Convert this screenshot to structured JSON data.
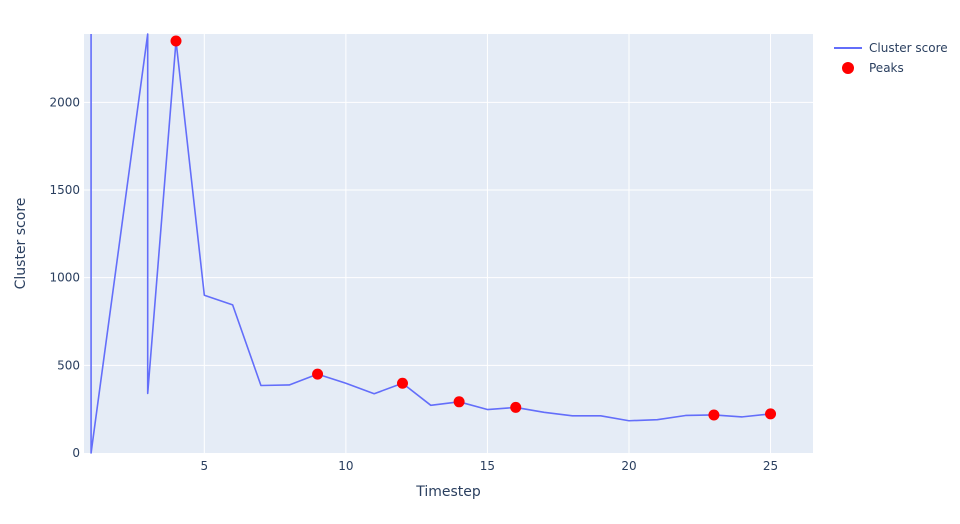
{
  "chart_data": {
    "type": "line",
    "xlabel": "Timestep",
    "ylabel": "Cluster score",
    "xlim": [
      0.75,
      26.5
    ],
    "ylim": [
      0,
      2390
    ],
    "xticks": [
      5,
      10,
      15,
      20,
      25
    ],
    "yticks": [
      0,
      500,
      1000,
      1500,
      2000
    ],
    "grid": true,
    "legend_position": "top-right",
    "series": [
      {
        "name": "Cluster score",
        "mode": "line",
        "color": "#636efa",
        "x": [
          1,
          1,
          3,
          3,
          4,
          5,
          6,
          7,
          8,
          9,
          10,
          11,
          12,
          13,
          14,
          15,
          16,
          17,
          18,
          19,
          20,
          21,
          22,
          23,
          24,
          25
        ],
        "y": [
          2390,
          0,
          2390,
          340,
          2350,
          900,
          845,
          385,
          388,
          450,
          398,
          338,
          398,
          272,
          292,
          248,
          260,
          232,
          212,
          212,
          184,
          190,
          214,
          217,
          206,
          223
        ]
      },
      {
        "name": "Peaks",
        "mode": "markers",
        "color": "#ff0000",
        "x": [
          4,
          9,
          12,
          14,
          16,
          23,
          25
        ],
        "y": [
          2350,
          450,
          398,
          292,
          260,
          217,
          223
        ]
      }
    ]
  }
}
